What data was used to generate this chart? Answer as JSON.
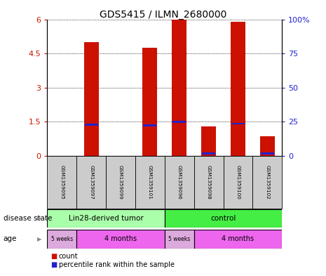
{
  "title": "GDS5415 / ILMN_2680000",
  "samples": [
    "GSM1359095",
    "GSM1359097",
    "GSM1359099",
    "GSM1359101",
    "GSM1359096",
    "GSM1359098",
    "GSM1359100",
    "GSM1359102"
  ],
  "count_values": [
    0.0,
    5.0,
    0.0,
    4.75,
    6.0,
    1.3,
    5.9,
    0.85
  ],
  "percentile_values_left_scale": [
    0.0,
    1.38,
    0.0,
    1.35,
    1.5,
    0.12,
    1.42,
    0.1
  ],
  "bar_color": "#cc1100",
  "percentile_color": "#2222cc",
  "ylim_left": [
    0,
    6
  ],
  "ylim_right": [
    0,
    100
  ],
  "yticks_left": [
    0,
    1.5,
    3.0,
    4.5,
    6.0
  ],
  "yticks_right": [
    0,
    25,
    50,
    75,
    100
  ],
  "disease_state_groups": [
    {
      "label": "Lin28-derived tumor",
      "start": 0,
      "end": 4,
      "color": "#aaffaa"
    },
    {
      "label": "control",
      "start": 4,
      "end": 8,
      "color": "#44ee44"
    }
  ],
  "age_groups": [
    {
      "label": "5 weeks",
      "start": 0,
      "end": 1,
      "color": "#ddaadd"
    },
    {
      "label": "4 months",
      "start": 1,
      "end": 4,
      "color": "#ee66ee"
    },
    {
      "label": "5 weeks",
      "start": 4,
      "end": 5,
      "color": "#ddaadd"
    },
    {
      "label": "4 months",
      "start": 5,
      "end": 8,
      "color": "#ee66ee"
    }
  ],
  "background_color": "#ffffff",
  "bar_width": 0.5,
  "sample_box_color": "#cccccc"
}
